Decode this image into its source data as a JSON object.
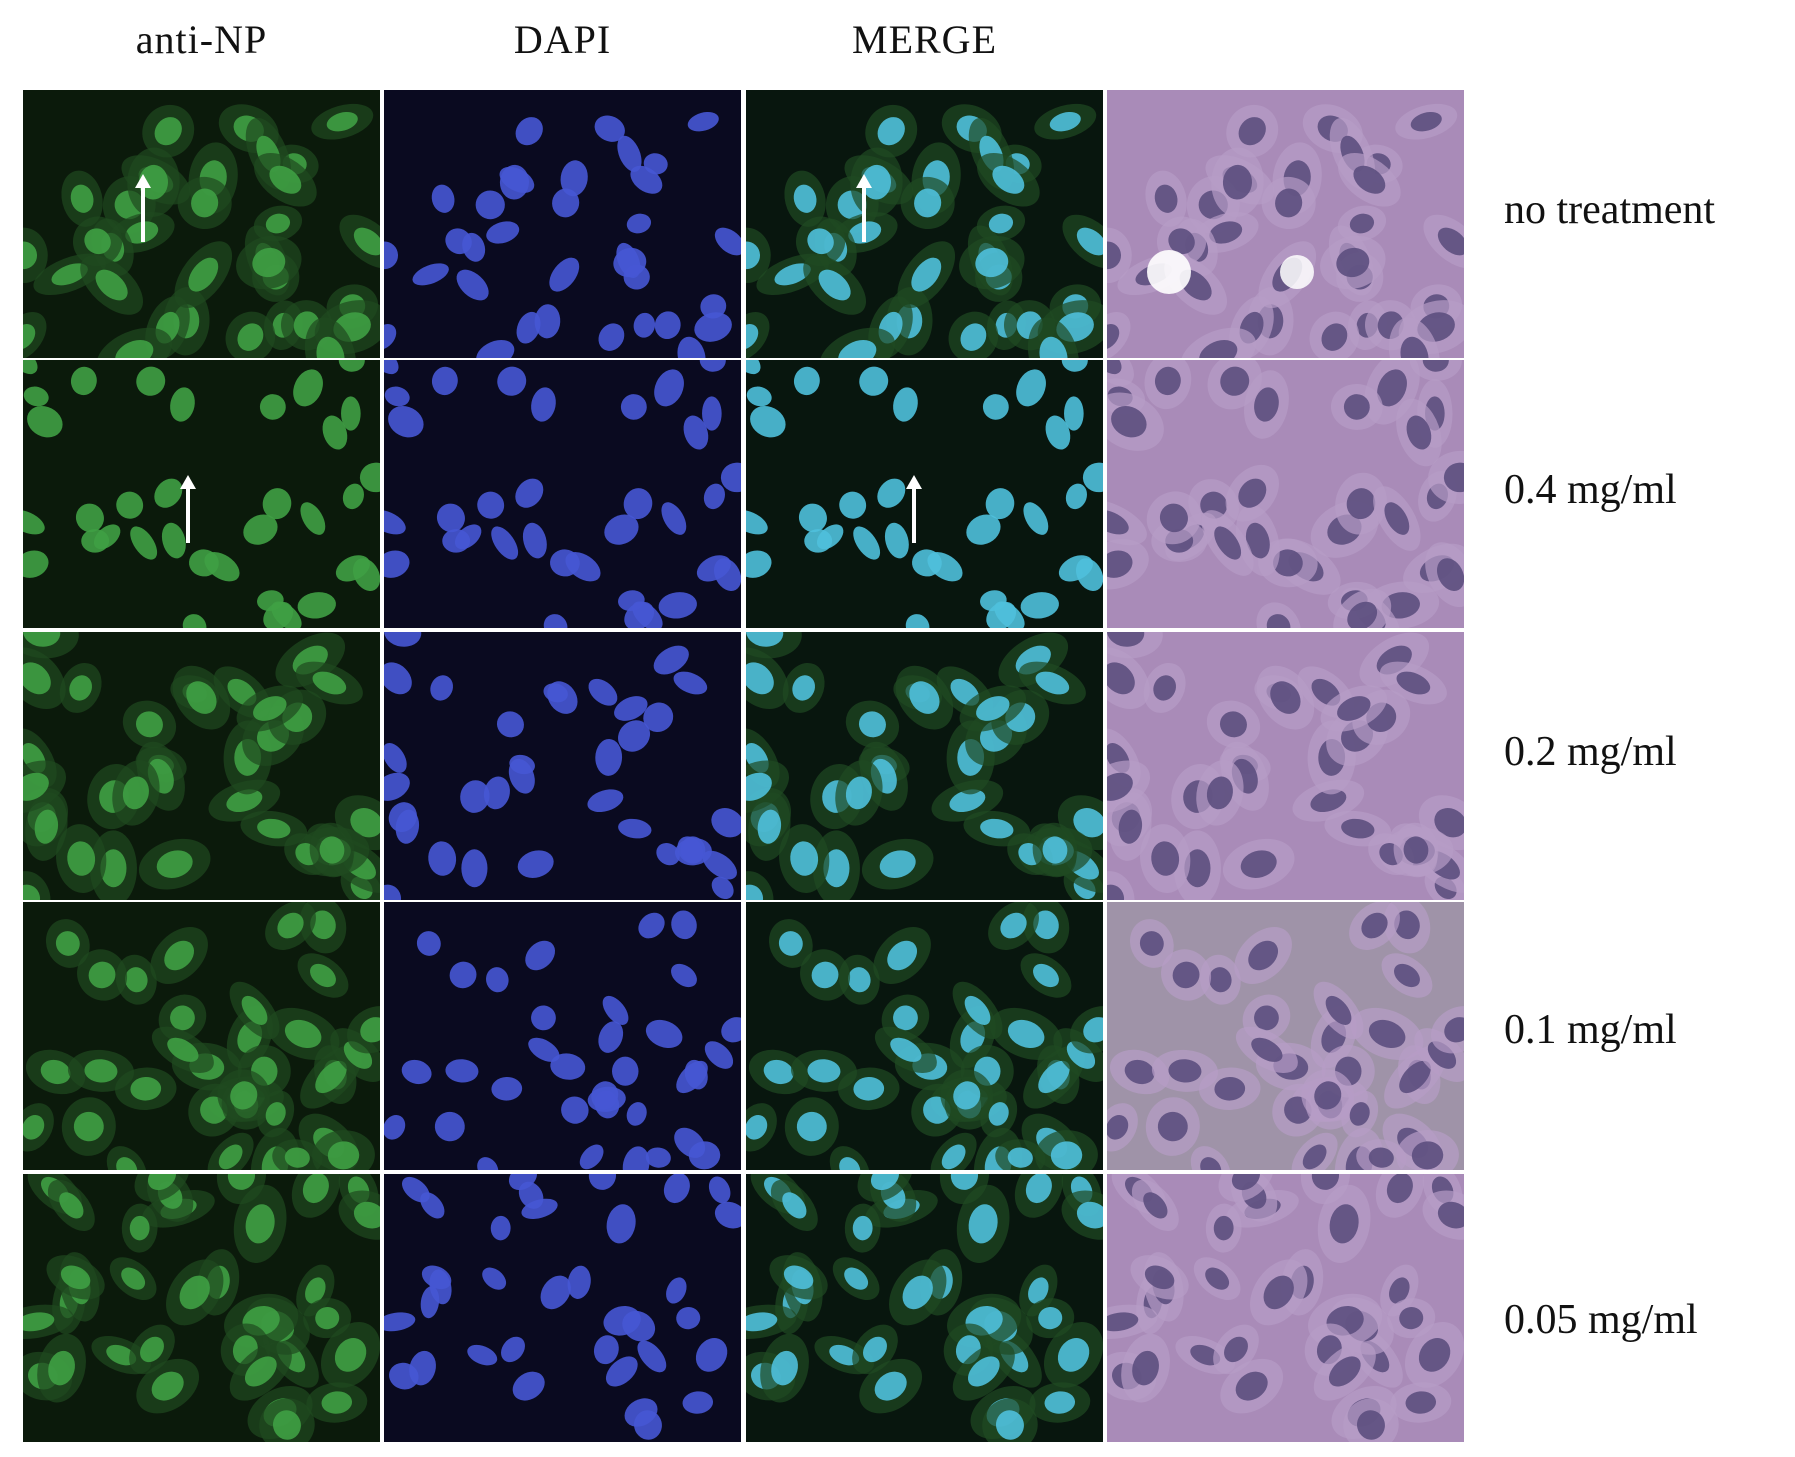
{
  "column_headers": [
    "anti-NP",
    "DAPI",
    "MERGE"
  ],
  "row_labels": [
    "no treatment",
    "0.4 mg/ml",
    "0.2 mg/ml",
    "0.1 mg/ml",
    "0.05 mg/ml"
  ]
}
